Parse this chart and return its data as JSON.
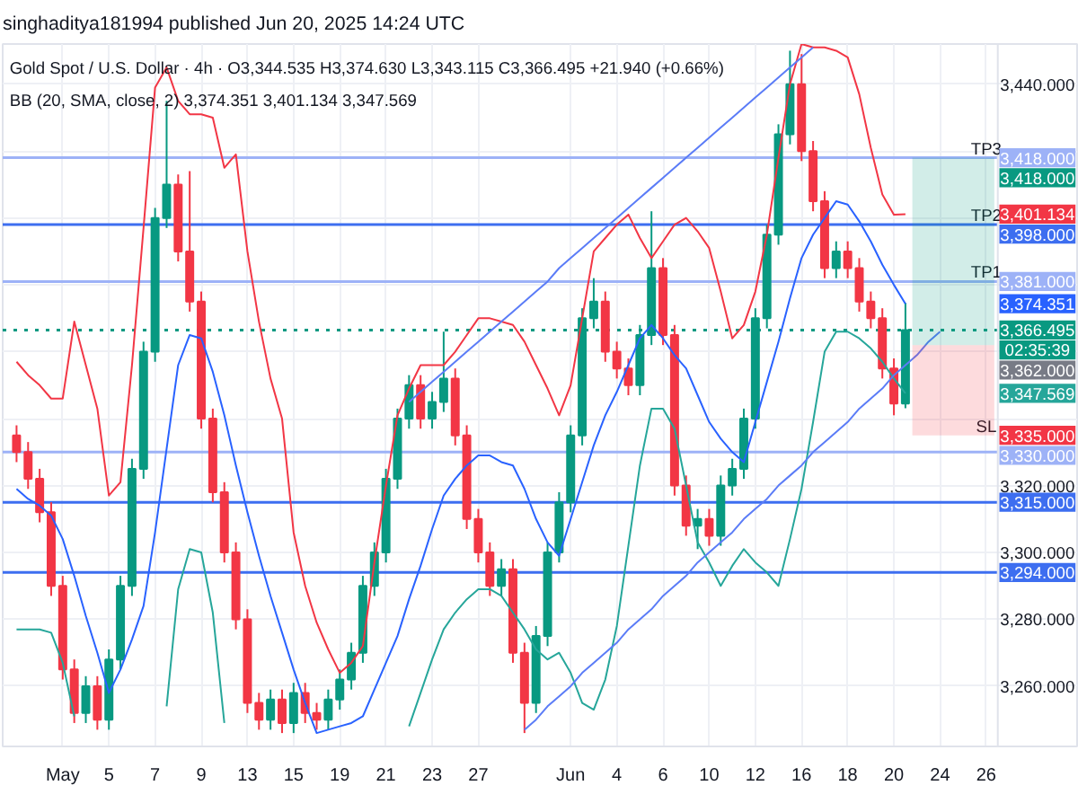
{
  "chart_data": {
    "type": "candlestick",
    "annotations": [
      "singhaditya181994 published Jun 20, 2025 14:24 UTC",
      "Gold Spot / U.S. Dollar · 4h · O3,344.535 H3,374.630 L3,343.115 C3,366.495 +21.940 (+0.66%)",
      "BB (20, SMA, close, 2) 3,374.351 3,401.134 3,347.569",
      {
        "text": "TP3",
        "x": "26",
        "y": 3418
      },
      {
        "text": "TP2",
        "x": "26",
        "y": 3398
      },
      {
        "text": "TP1",
        "x": "26",
        "y": 3381
      },
      {
        "text": "SL",
        "x": "26",
        "y": 3335
      },
      "3,362.000",
      "02:35:39",
      "3,374.351",
      "3,401.134",
      "3,347.569"
    ],
    "categories": [
      null,
      null,
      null,
      null,
      "May",
      null,
      null,
      null,
      "5",
      null,
      null,
      null,
      "7",
      null,
      null,
      null,
      "9",
      null,
      null,
      null,
      "13",
      null,
      null,
      null,
      "15",
      null,
      null,
      null,
      "19",
      null,
      null,
      null,
      "21",
      null,
      null,
      null,
      "23",
      null,
      null,
      null,
      "27",
      null,
      null,
      null,
      null,
      null,
      null,
      null,
      "Jun",
      null,
      null,
      null,
      "4",
      null,
      null,
      null,
      "6",
      null,
      null,
      null,
      "10",
      null,
      null,
      null,
      "12",
      null,
      null,
      null,
      "16",
      null,
      null,
      null,
      "18",
      null,
      null,
      null,
      "20",
      null,
      null,
      null,
      "24",
      null,
      null,
      null,
      "26",
      null
    ],
    "ohlc": [
      [
        3335,
        3338,
        3327,
        3330
      ],
      [
        3330,
        3333,
        3319,
        3322
      ],
      [
        3322,
        3325,
        3309,
        3312
      ],
      [
        3312,
        3315,
        3287,
        3290
      ],
      [
        3290,
        3293,
        3262,
        3265
      ],
      [
        3265,
        3268,
        3249,
        3252
      ],
      [
        3252,
        3263,
        3249,
        3260
      ],
      [
        3260,
        3263,
        3247,
        3250
      ],
      [
        3250,
        3271,
        3247,
        3268
      ],
      [
        3268,
        3293,
        3265,
        3290
      ],
      [
        3290,
        3328,
        3287,
        3325
      ],
      [
        3325,
        3363,
        3322,
        3360
      ],
      [
        3360,
        3403,
        3357,
        3400
      ],
      [
        3400,
        3435,
        3397,
        3410
      ],
      [
        3410,
        3413,
        3387,
        3390
      ],
      [
        3390,
        3414,
        3372,
        3375
      ],
      [
        3375,
        3378,
        3337,
        3340
      ],
      [
        3340,
        3343,
        3315,
        3318
      ],
      [
        3318,
        3321,
        3297,
        3300
      ],
      [
        3300,
        3303,
        3277,
        3280
      ],
      [
        3280,
        3283,
        3252,
        3255
      ],
      [
        3255,
        3258,
        3247,
        3250
      ],
      [
        3250,
        3259,
        3247,
        3256
      ],
      [
        3256,
        3259,
        3246,
        3249
      ],
      [
        3249,
        3261,
        3246,
        3258
      ],
      [
        3258,
        3261,
        3249,
        3252
      ],
      [
        3252,
        3255,
        3247,
        3250
      ],
      [
        3250,
        3259,
        3247,
        3256
      ],
      [
        3256,
        3265,
        3253,
        3262
      ],
      [
        3262,
        3273,
        3259,
        3270
      ],
      [
        3270,
        3293,
        3267,
        3290
      ],
      [
        3290,
        3303,
        3287,
        3300
      ],
      [
        3300,
        3325,
        3297,
        3322
      ],
      [
        3322,
        3343,
        3319,
        3340
      ],
      [
        3340,
        3353,
        3337,
        3350
      ],
      [
        3350,
        3353,
        3337,
        3340
      ],
      [
        3340,
        3348,
        3337,
        3345
      ],
      [
        3345,
        3366,
        3342,
        3352
      ],
      [
        3352,
        3355,
        3332,
        3335
      ],
      [
        3335,
        3338,
        3307,
        3310
      ],
      [
        3310,
        3313,
        3297,
        3300
      ],
      [
        3300,
        3303,
        3287,
        3290
      ],
      [
        3290,
        3298,
        3287,
        3295
      ],
      [
        3295,
        3298,
        3267,
        3270
      ],
      [
        3270,
        3273,
        3246,
        3255
      ],
      [
        3255,
        3278,
        3252,
        3275
      ],
      [
        3275,
        3303,
        3272,
        3300
      ],
      [
        3300,
        3318,
        3297,
        3315
      ],
      [
        3315,
        3338,
        3312,
        3335
      ],
      [
        3335,
        3373,
        3332,
        3370
      ],
      [
        3370,
        3382,
        3367,
        3375
      ],
      [
        3375,
        3378,
        3357,
        3360
      ],
      [
        3360,
        3363,
        3352,
        3355
      ],
      [
        3355,
        3358,
        3347,
        3350
      ],
      [
        3350,
        3368,
        3347,
        3365
      ],
      [
        3365,
        3402,
        3362,
        3385
      ],
      [
        3385,
        3388,
        3362,
        3365
      ],
      [
        3365,
        3368,
        3317,
        3320
      ],
      [
        3320,
        3323,
        3305,
        3308
      ],
      [
        3308,
        3313,
        3301,
        3310
      ],
      [
        3310,
        3313,
        3302,
        3305
      ],
      [
        3305,
        3323,
        3302,
        3320
      ],
      [
        3320,
        3328,
        3317,
        3325
      ],
      [
        3325,
        3343,
        3322,
        3340
      ],
      [
        3340,
        3373,
        3337,
        3370
      ],
      [
        3370,
        3398,
        3367,
        3395
      ],
      [
        3395,
        3428,
        3392,
        3425
      ],
      [
        3425,
        3450,
        3422,
        3440
      ],
      [
        3440,
        3449,
        3417,
        3420
      ],
      [
        3420,
        3423,
        3402,
        3405
      ],
      [
        3405,
        3408,
        3382,
        3385
      ],
      [
        3385,
        3393,
        3382,
        3390
      ],
      [
        3390,
        3393,
        3382,
        3385
      ],
      [
        3385,
        3388,
        3372,
        3375
      ],
      [
        3375,
        3378,
        3367,
        3370
      ],
      [
        3370,
        3373,
        3352,
        3355
      ],
      [
        3355,
        3358,
        3341,
        3344.5
      ],
      [
        3344.535,
        3374.63,
        3343.115,
        3366.495
      ],
      null,
      null,
      null,
      null,
      null,
      null,
      null,
      null
    ],
    "colors": [
      "#f23645",
      "#f23645",
      "#f23645",
      "#f23645",
      "#f23645",
      "#f23645",
      "#089981",
      "#f23645",
      "#089981",
      "#089981",
      "#089981",
      "#089981",
      "#089981",
      "#089981",
      "#f23645",
      "#f23645",
      "#f23645",
      "#f23645",
      "#f23645",
      "#f23645",
      "#f23645",
      "#f23645",
      "#089981",
      "#f23645",
      "#089981",
      "#f23645",
      "#f23645",
      "#089981",
      "#089981",
      "#089981",
      "#089981",
      "#089981",
      "#089981",
      "#089981",
      "#089981",
      "#f23645",
      "#089981",
      "#089981",
      "#f23645",
      "#f23645",
      "#f23645",
      "#f23645",
      "#089981",
      "#f23645",
      "#f23645",
      "#089981",
      "#089981",
      "#089981",
      "#089981",
      "#089981",
      "#089981",
      "#f23645",
      "#f23645",
      "#f23645",
      "#089981",
      "#089981",
      "#f23645",
      "#f23645",
      "#f23645",
      "#089981",
      "#f23645",
      "#089981",
      "#089981",
      "#089981",
      "#089981",
      "#089981",
      "#089981",
      "#089981",
      "#f23645",
      "#f23645",
      "#f23645",
      "#089981",
      "#f23645",
      "#f23645",
      "#f23645",
      "#f23645",
      "#f23645",
      "#089981",
      null,
      null,
      null,
      null,
      null,
      null,
      null,
      null
    ],
    "series": [
      {
        "type": "line",
        "color": "#2962ff",
        "values": [
          3319,
          3316,
          3314,
          3311,
          3304,
          3293,
          3281,
          3270,
          3258,
          3265,
          3274,
          3284,
          3306,
          3331,
          3356,
          3365,
          3364,
          3354,
          3341,
          3326,
          3312,
          3299,
          3287,
          3276,
          3265,
          3255,
          3246,
          3247,
          3248,
          3249,
          3251,
          3259,
          3267,
          3275,
          3286,
          3296,
          3307,
          3317,
          3322,
          3326,
          3329,
          3329,
          3327,
          3326,
          3319,
          3310,
          3303,
          3299,
          3310,
          3321,
          3332,
          3341,
          3348,
          3356,
          3364,
          3368,
          3364,
          3359,
          3355,
          3347,
          3339,
          3334,
          3330,
          3327,
          3339,
          3351,
          3363,
          3376,
          3388,
          3395,
          3400,
          3405,
          3404,
          3399,
          3393,
          3386,
          3380,
          3374.351,
          null,
          null,
          null,
          null,
          null,
          null,
          null,
          null
        ]
      },
      {
        "type": "line",
        "color": "#f23645",
        "values": [
          3357,
          3353,
          3350,
          3346,
          3346,
          3369,
          3356,
          3343,
          3317,
          3321,
          3356,
          3397,
          3439,
          3445,
          3435,
          3431,
          3431,
          3430,
          3415,
          3419,
          3390,
          3369,
          3352,
          3340,
          3306,
          3290,
          3279,
          3271,
          3264,
          3267,
          3272,
          3297,
          3320,
          3341,
          3349,
          3356,
          3356,
          3356,
          3360,
          3365,
          3370,
          3370,
          3369,
          3368,
          3363,
          3356,
          3349,
          3341,
          3350,
          3370,
          3390,
          3394,
          3398,
          3401,
          3394,
          3388,
          3393,
          3398,
          3400,
          3396,
          3391,
          3378,
          3364,
          3368,
          3378,
          3395,
          3418,
          3440,
          3452,
          3451,
          3451,
          3450,
          3448,
          3437,
          3421,
          3407,
          3401,
          3401.134,
          null,
          null,
          null,
          null,
          null,
          null,
          null,
          null
        ]
      },
      {
        "type": "line",
        "color": "#26a69a",
        "values": [
          3277,
          3277,
          3277,
          3276,
          3267,
          3251,
          null,
          null,
          null,
          null,
          null,
          null,
          null,
          3254,
          3289,
          3301,
          3300,
          3282,
          3249,
          null,
          null,
          null,
          null,
          null,
          null,
          null,
          null,
          null,
          null,
          null,
          null,
          null,
          null,
          null,
          3248,
          3258,
          3268,
          3277,
          3282,
          3286,
          3289,
          3289,
          3287,
          3282,
          3277,
          3271,
          3268,
          3270,
          3264,
          3255,
          3253,
          3262,
          3278,
          3302,
          3326,
          3343,
          3343,
          3337,
          3320,
          3303,
          3297,
          3290,
          3296,
          3301,
          3297,
          3294,
          3290,
          3304,
          3319,
          3339,
          3360,
          3366,
          3366,
          3364,
          3361,
          3357,
          3352,
          3347.569,
          null,
          null,
          null,
          null,
          null,
          null,
          null,
          null
        ]
      },
      {
        "type": "line",
        "color": "#5b7cf7",
        "values": [
          null,
          null,
          null,
          null,
          null,
          null,
          null,
          null,
          null,
          null,
          null,
          null,
          null,
          null,
          null,
          null,
          null,
          null,
          null,
          null,
          null,
          null,
          null,
          null,
          null,
          null,
          null,
          null,
          null,
          null,
          null,
          null,
          null,
          null,
          3345,
          3348,
          3351,
          3354,
          3357,
          3360,
          3363,
          3366,
          3369,
          3372,
          3375,
          3378,
          3381,
          3385,
          3388,
          3391,
          3394,
          3397,
          3400,
          3403,
          3406,
          3409,
          3412,
          3415,
          3418,
          3421,
          3424,
          3427,
          3430,
          3433,
          3436,
          3439,
          3442,
          3445,
          3448,
          3451,
          null,
          null,
          null,
          null,
          null,
          null,
          null,
          null,
          null,
          null,
          null,
          null,
          null,
          null,
          null,
          null
        ]
      },
      {
        "type": "line",
        "color": "#5b7cf7",
        "values": [
          null,
          null,
          null,
          null,
          null,
          null,
          null,
          null,
          null,
          null,
          null,
          null,
          null,
          null,
          null,
          null,
          null,
          null,
          null,
          null,
          null,
          null,
          null,
          null,
          null,
          null,
          null,
          null,
          null,
          null,
          null,
          null,
          null,
          null,
          null,
          null,
          null,
          null,
          null,
          null,
          null,
          null,
          null,
          null,
          3247,
          3250,
          3254,
          3257,
          3260,
          3264,
          3267,
          3270,
          3273,
          3277,
          3280,
          3283,
          3287,
          3290,
          3293,
          3297,
          3300,
          3303,
          3306,
          3310,
          3313,
          3316,
          3320,
          3323,
          3326,
          3330,
          3333,
          3336,
          3339,
          3343,
          3346,
          3349,
          3353,
          3356,
          3359,
          3363,
          3366,
          null,
          null,
          null,
          null,
          null
        ]
      }
    ],
    "ref_lines": [
      {
        "axis": "y",
        "value": 3418,
        "label": "3,418.000",
        "color": "#9db2f7"
      },
      {
        "axis": "y",
        "value": 3398,
        "label": "3,398.000",
        "color": "#3d6ef0"
      },
      {
        "axis": "y",
        "value": 3381,
        "label": "3,381.000",
        "color": "#9db2f7"
      },
      {
        "axis": "y",
        "value": 3330,
        "label": "3,330.000",
        "color": "#9db2f7"
      },
      {
        "axis": "y",
        "value": 3315,
        "label": "3,315.000",
        "color": "#3d6ef0"
      },
      {
        "axis": "y",
        "value": 3294,
        "label": "3,294.000",
        "color": "#3d6ef0"
      },
      {
        "axis": "y",
        "value": 3366.495,
        "label": "3,366.495",
        "color": "#089981",
        "line_style": "dotted"
      }
    ],
    "bands": [
      {
        "axis": "y",
        "from": 3362,
        "to": 3418,
        "label": "3,418.000",
        "color": "#089981"
      },
      {
        "axis": "y",
        "from": 3335,
        "to": 3362,
        "label": "3,335.000",
        "color": "#f23645"
      }
    ],
    "ylim": [
      3242,
      3452
    ],
    "yticks": [
      {
        "value": 3260,
        "label": "3,260.000"
      },
      {
        "value": 3280,
        "label": "3,280.000"
      },
      {
        "value": 3300,
        "label": "3,300.000"
      },
      {
        "value": 3320,
        "label": "3,320.000"
      },
      {
        "value": 3340,
        "label": null
      },
      {
        "value": 3360,
        "label": null
      },
      {
        "value": 3380,
        "label": null
      },
      {
        "value": 3400,
        "label": null
      },
      {
        "value": 3420,
        "label": null
      },
      {
        "value": 3440,
        "label": "3,440.000"
      }
    ],
    "grid": true
  }
}
